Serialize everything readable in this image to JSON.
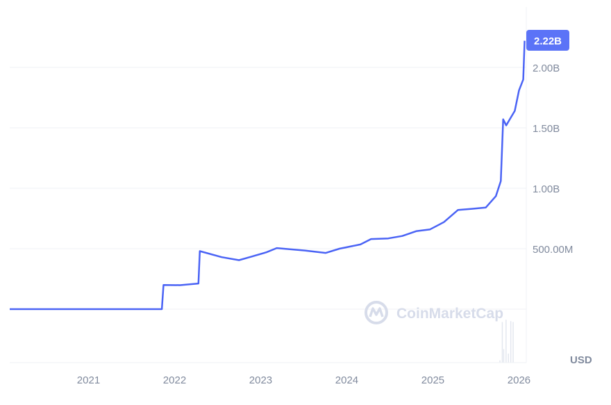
{
  "chart_data": {
    "type": "line",
    "title": "",
    "xlabel": "",
    "ylabel": "",
    "currency_label": "USD",
    "watermark": "CoinMarketCap",
    "current_value_label": "2.22B",
    "x_ticks": [
      "2021",
      "2022",
      "2023",
      "2024",
      "2025",
      "2026"
    ],
    "y_ticks": [
      {
        "value": 500000000,
        "label": "500.00M"
      },
      {
        "value": 1000000000,
        "label": "1.00B"
      },
      {
        "value": 1500000000,
        "label": "1.50B"
      },
      {
        "value": 2000000000,
        "label": "2.00B"
      }
    ],
    "xlim": [
      "2020-02-01",
      "2026-02-01"
    ],
    "ylim": [
      0,
      2250000000
    ],
    "grid": true,
    "colors": {
      "line": "#4a63f5",
      "badge": "#5b73f7",
      "grid": "#eff2f5",
      "text": "#808a9d"
    },
    "series": [
      {
        "x": [
          "2020-02-01",
          "2021-11-08",
          "2021-11-15",
          "2022-01-24",
          "2022-04-12",
          "2022-04-18",
          "2022-07-20",
          "2022-10-01",
          "2022-11-15",
          "2023-01-25",
          "2023-03-10",
          "2023-07-07",
          "2023-10-04",
          "2023-12-01",
          "2024-02-28",
          "2024-04-13",
          "2024-06-25",
          "2024-08-24",
          "2024-10-22",
          "2024-12-20",
          "2025-02-17",
          "2025-04-17",
          "2025-06-15",
          "2025-08-13",
          "2025-09-25",
          "2025-10-16",
          "2025-10-26",
          "2025-11-08",
          "2025-11-23",
          "2025-12-14",
          "2026-01-01",
          "2026-01-19",
          "2026-01-25"
        ],
        "y": [
          0,
          0,
          200000000,
          198000000,
          212000000,
          480000000,
          430000000,
          405000000,
          430000000,
          470000000,
          505000000,
          485000000,
          465000000,
          500000000,
          535000000,
          580000000,
          585000000,
          605000000,
          645000000,
          660000000,
          720000000,
          820000000,
          830000000,
          840000000,
          935000000,
          1060000000,
          1570000000,
          1520000000,
          1570000000,
          1640000000,
          1810000000,
          1900000000,
          2220000000
        ]
      }
    ],
    "volume": {
      "x": [
        "2025-10-10",
        "2025-10-20",
        "2025-10-26",
        "2025-11-05",
        "2025-11-15",
        "2025-11-25",
        "2025-12-05"
      ],
      "relative": [
        0.05,
        0.9,
        0.3,
        0.95,
        0.2,
        0.92,
        0.9
      ]
    }
  }
}
